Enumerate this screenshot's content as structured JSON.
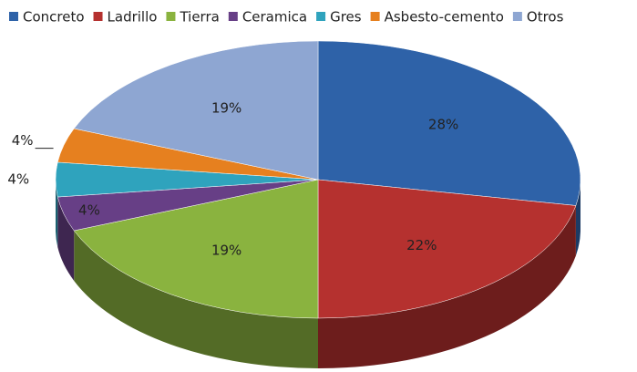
{
  "chart_data": {
    "type": "pie",
    "categories": [
      "Concreto",
      "Ladrillo",
      "Tierra",
      "Ceramica",
      "Gres",
      "Asbesto-cemento",
      "Otros"
    ],
    "values": [
      28,
      22,
      19,
      4,
      4,
      4,
      19
    ],
    "value_labels": [
      "28%",
      "22%",
      "19%",
      "4%",
      "4%",
      "4%",
      "19%"
    ],
    "colors": [
      "#2e62a8",
      "#b5312f",
      "#8ab33f",
      "#673f86",
      "#2fa3bd",
      "#e6801f",
      "#8ea6d2"
    ],
    "legend": "top"
  }
}
